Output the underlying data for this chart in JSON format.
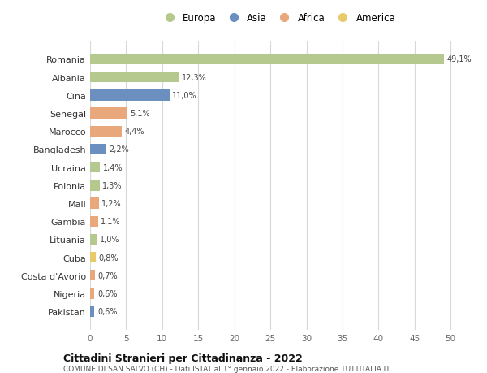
{
  "countries": [
    "Romania",
    "Albania",
    "Cina",
    "Senegal",
    "Marocco",
    "Bangladesh",
    "Ucraina",
    "Polonia",
    "Mali",
    "Gambia",
    "Lituania",
    "Cuba",
    "Costa d'Avorio",
    "Nigeria",
    "Pakistan"
  ],
  "values": [
    49.1,
    12.3,
    11.0,
    5.1,
    4.4,
    2.2,
    1.4,
    1.3,
    1.2,
    1.1,
    1.0,
    0.8,
    0.7,
    0.6,
    0.6
  ],
  "labels": [
    "49,1%",
    "12,3%",
    "11,0%",
    "5,1%",
    "4,4%",
    "2,2%",
    "1,4%",
    "1,3%",
    "1,2%",
    "1,1%",
    "1,0%",
    "0,8%",
    "0,7%",
    "0,6%",
    "0,6%"
  ],
  "colors": [
    "#b5c98e",
    "#b5c98e",
    "#6b8fbf",
    "#e8a87c",
    "#e8a87c",
    "#6b8fbf",
    "#b5c98e",
    "#b5c98e",
    "#e8a87c",
    "#e8a87c",
    "#b5c98e",
    "#e8c96b",
    "#e8a87c",
    "#e8a87c",
    "#6b8fbf"
  ],
  "legend_labels": [
    "Europa",
    "Asia",
    "Africa",
    "America"
  ],
  "legend_colors": [
    "#b5c98e",
    "#6b8fbf",
    "#e8a87c",
    "#e8c96b"
  ],
  "xlim": [
    0,
    52
  ],
  "xticks": [
    0,
    5,
    10,
    15,
    20,
    25,
    30,
    35,
    40,
    45,
    50
  ],
  "title_bold": "Cittadini Stranieri per Cittadinanza - 2022",
  "subtitle": "COMUNE DI SAN SALVO (CH) - Dati ISTAT al 1° gennaio 2022 - Elaborazione TUTTITALIA.IT",
  "background_color": "#ffffff",
  "grid_color": "#d8d8d8",
  "bar_height": 0.6,
  "figsize": [
    6.0,
    4.6
  ],
  "dpi": 100
}
